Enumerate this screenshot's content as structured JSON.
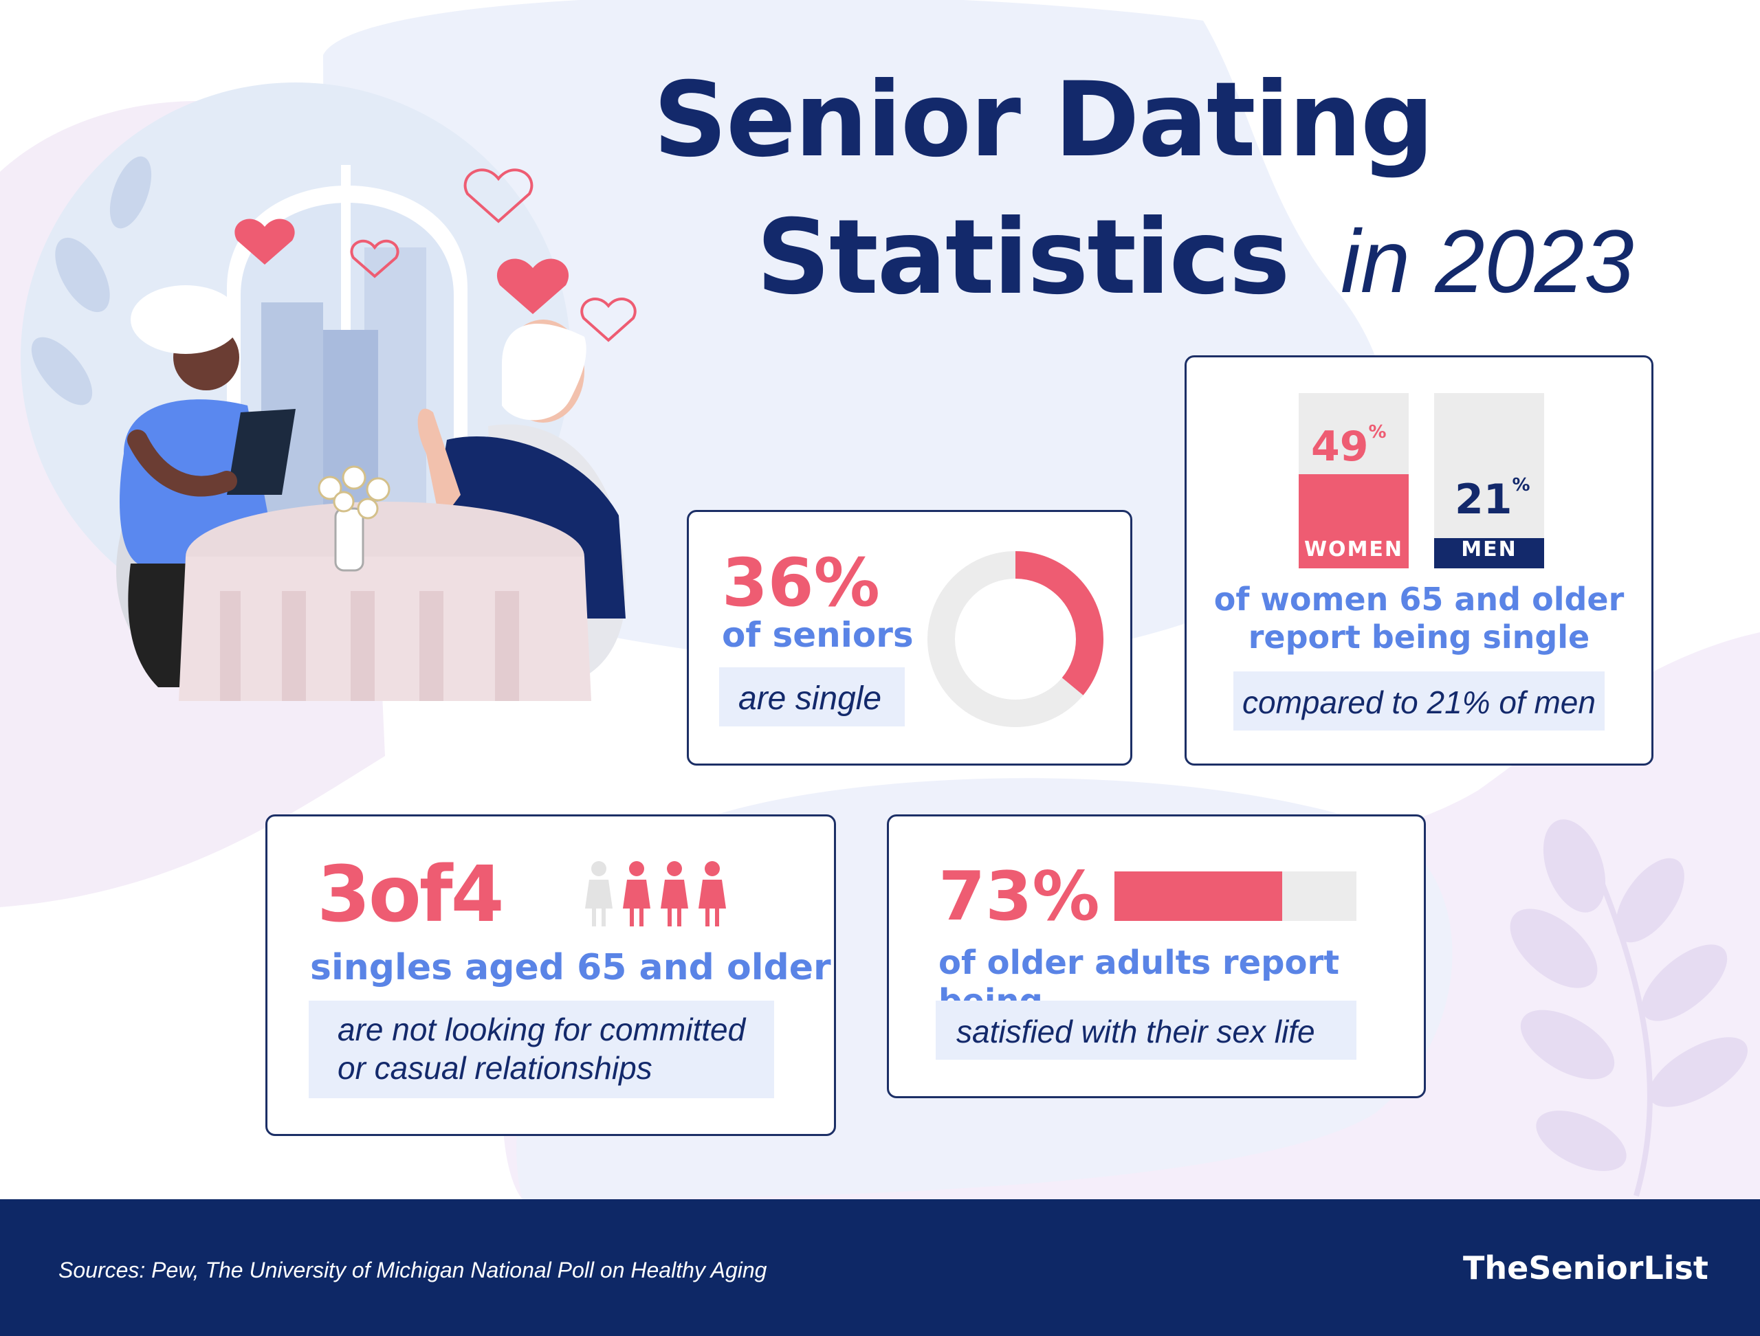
{
  "title": {
    "line1": "Senior Dating",
    "line2": "Statistics",
    "year_text": "in 2023"
  },
  "colors": {
    "navy": "#13296b",
    "coral": "#ee5c72",
    "light_blue": "#5a84e6",
    "pill_bg": "#e8eefb",
    "track_gray": "#ececec"
  },
  "stat_single": {
    "value_text": "36%",
    "label": "of seniors",
    "pill": "are single",
    "donut_fraction": 0.36
  },
  "stat_women_men": {
    "women_value": "49",
    "women_unit": "%",
    "women_label": "WOMEN",
    "women_fraction": 0.49,
    "men_value": "21",
    "men_unit": "%",
    "men_label": "MEN",
    "men_fraction": 0.21,
    "text_line1": "of women 65 and older",
    "text_line2": "report being single",
    "pill": "compared to 21% of men"
  },
  "stat_singles": {
    "value_text": "3of4",
    "label": "singles aged 65 and older",
    "pill_line1": "are not looking for committed",
    "pill_line2": "or casual relationships",
    "figures_highlighted": 3,
    "figures_total": 4
  },
  "stat_satisfied": {
    "value_text": "73%",
    "bar_fraction": 0.73,
    "label": "of older adults report being",
    "pill": "satisfied with their sex life"
  },
  "footer": {
    "sources": "Sources: Pew, The University of Michigan National Poll on Healthy Aging",
    "brand": "TheSeniorList"
  }
}
